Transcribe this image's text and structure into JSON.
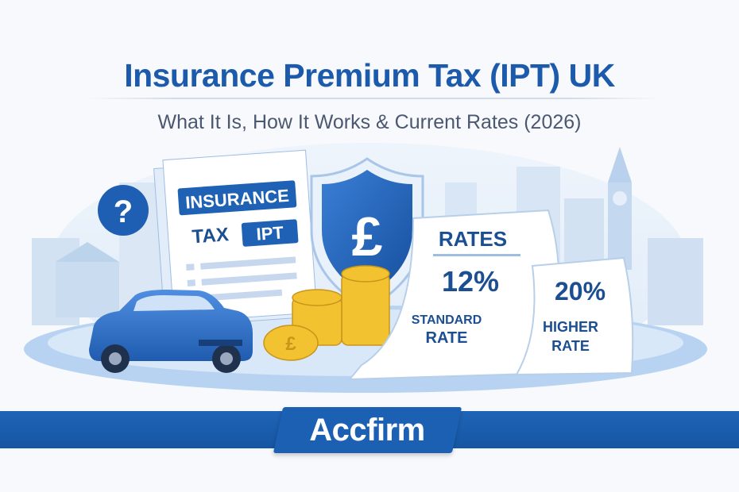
{
  "header": {
    "title": "Insurance Premium Tax (IPT) UK",
    "subtitle": "What It Is, How It Works & Current Rates (2026)"
  },
  "illustration": {
    "question_mark": "?",
    "document": {
      "label_1": "INSURANCE",
      "label_2": "TAX",
      "label_3": "IPT"
    },
    "shield_symbol": "£",
    "coin_symbol": "£",
    "receipt_standard": {
      "heading": "RATES",
      "rate": "12%",
      "label_1": "STANDARD",
      "label_2": "RATE"
    },
    "receipt_higher": {
      "rate": "20%",
      "label_1": "HIGHER",
      "label_2": "RATE"
    }
  },
  "footer": {
    "brand": "Accfirm"
  },
  "colors": {
    "brand_blue": "#1c5bab",
    "subtitle_gray": "#4b5870",
    "coin_gold": "#f2c230",
    "light_blue": "#cfe2f7"
  }
}
